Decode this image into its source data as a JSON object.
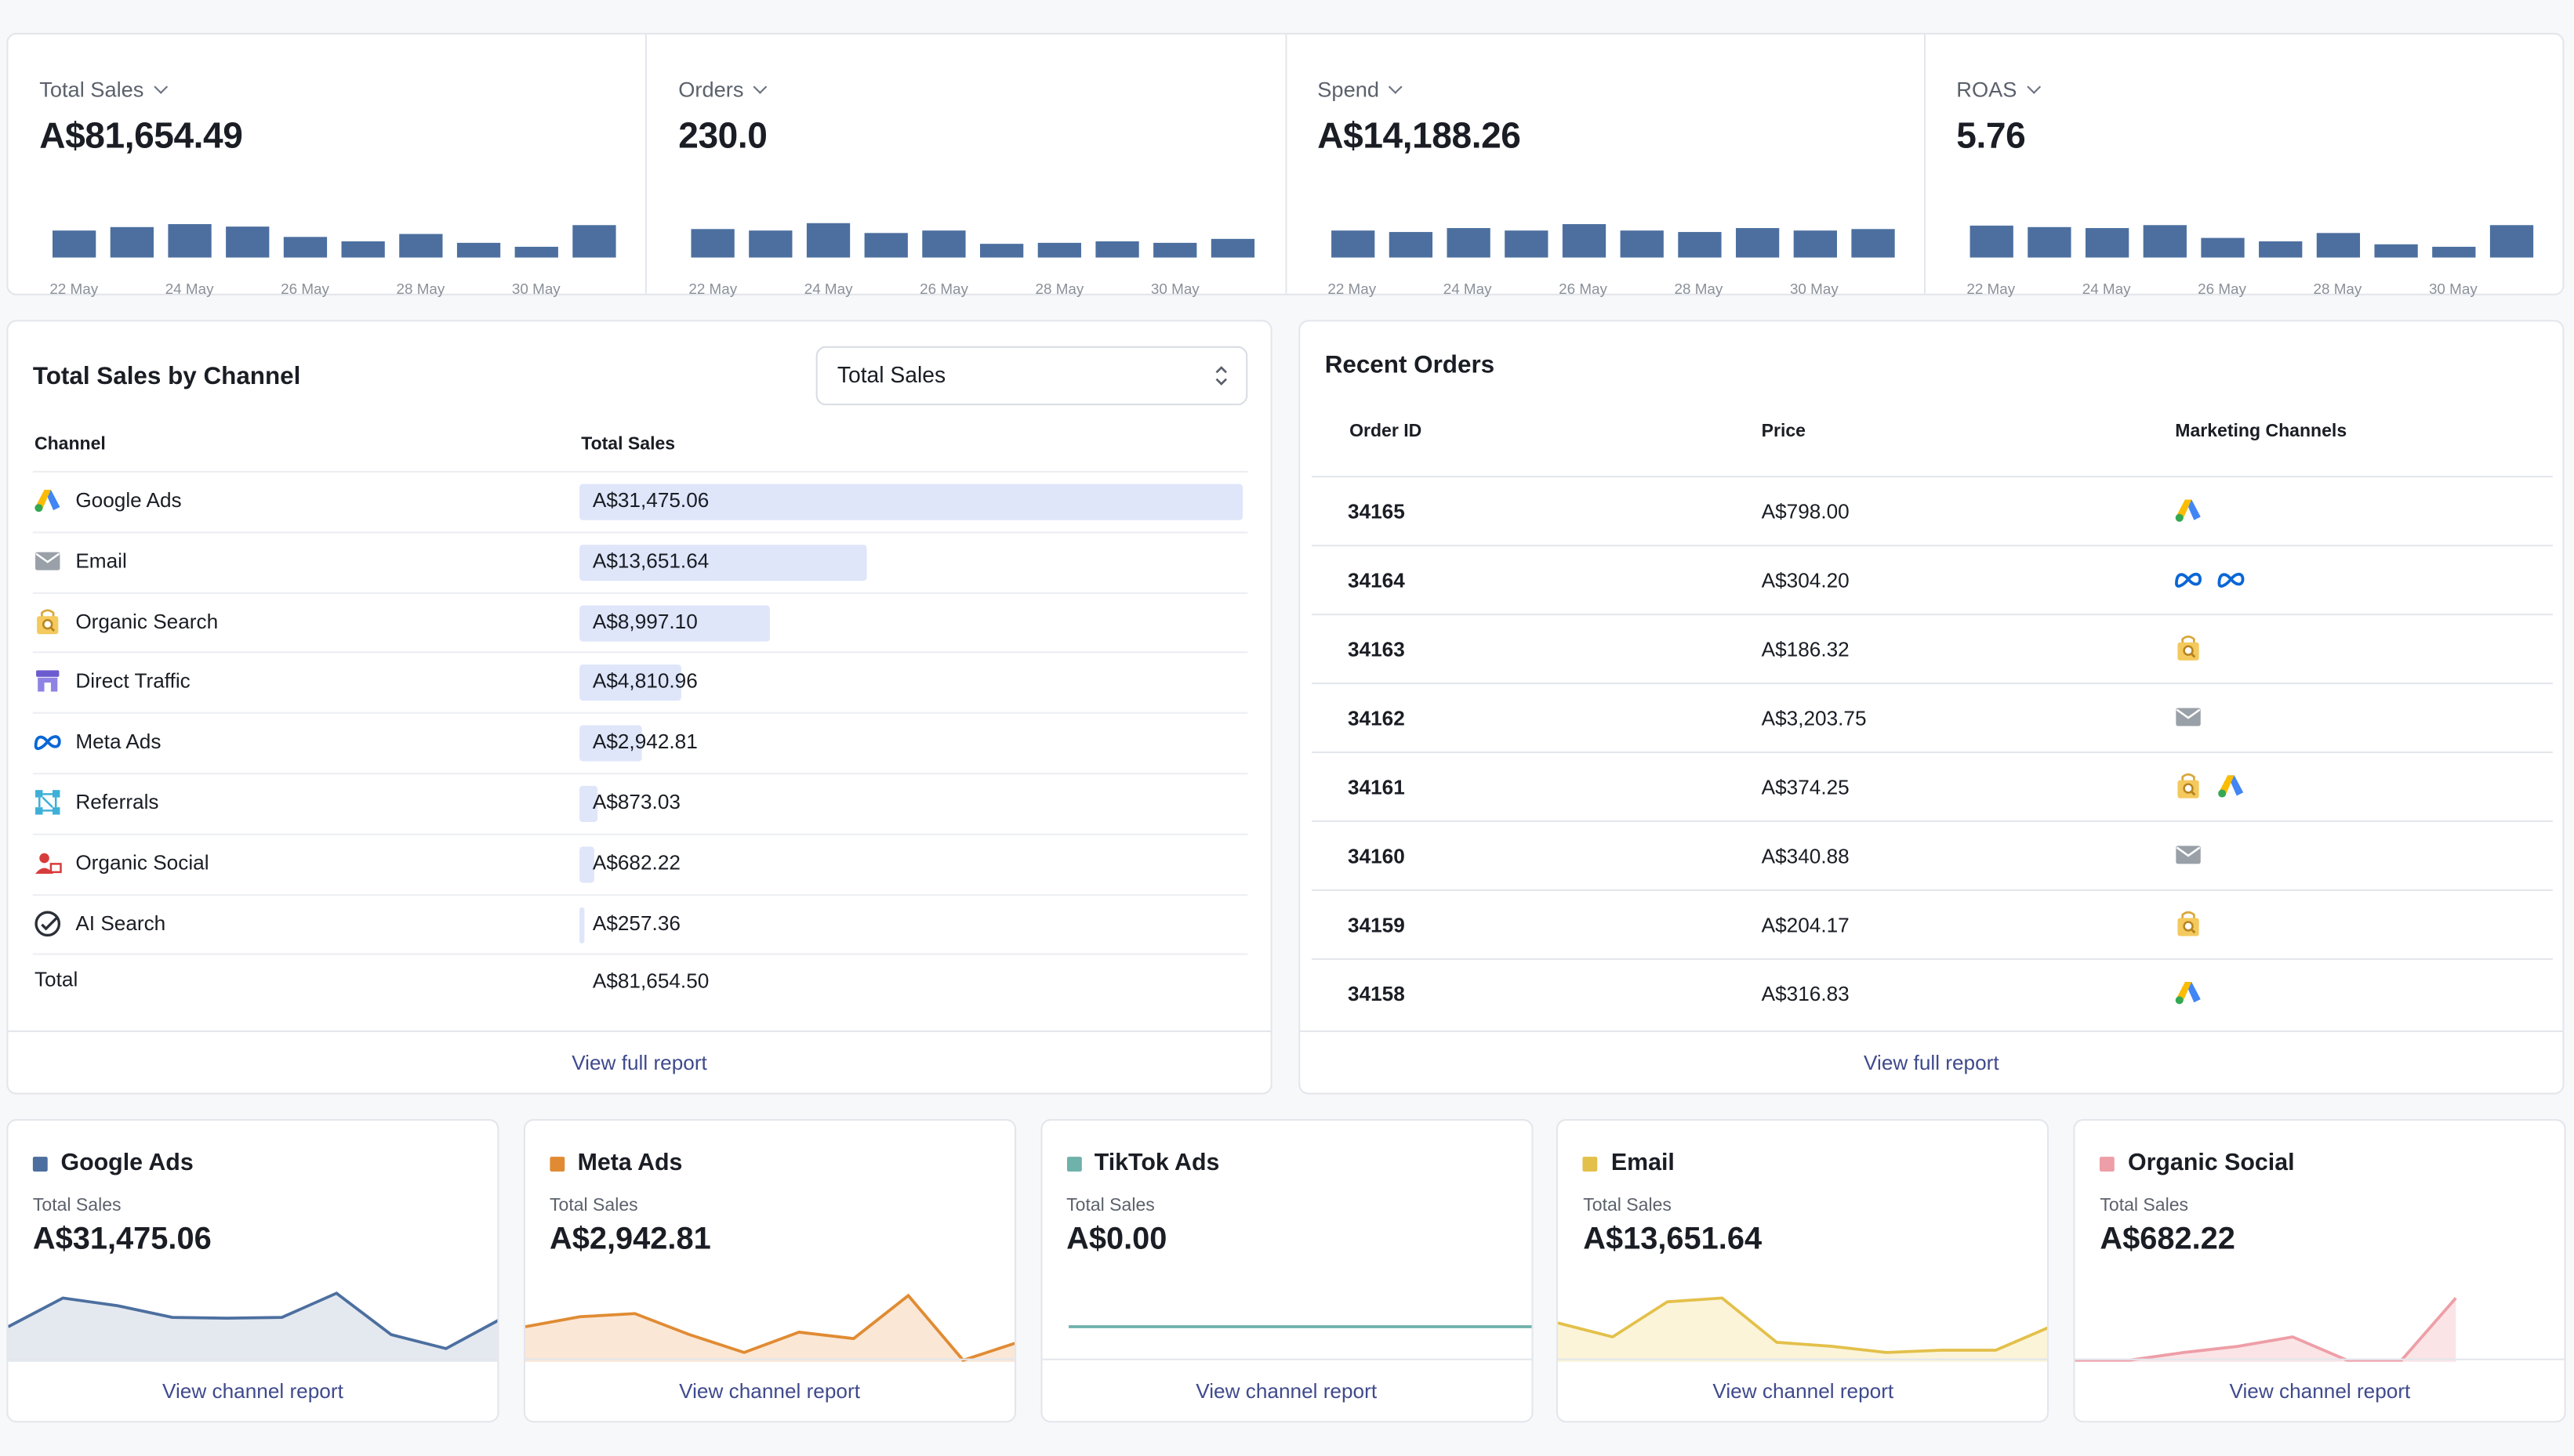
{
  "kpis": [
    {
      "label": "Total Sales",
      "value": "A$81,654.49",
      "bars": [
        0.55,
        0.62,
        0.68,
        0.63,
        0.42,
        0.33,
        0.48,
        0.3,
        0.22,
        0.66
      ],
      "ticks": [
        "22 May",
        "24 May",
        "26 May",
        "28 May",
        "30 May"
      ]
    },
    {
      "label": "Orders",
      "value": "230.0",
      "bars": [
        0.58,
        0.55,
        0.7,
        0.5,
        0.55,
        0.28,
        0.3,
        0.33,
        0.3,
        0.38
      ],
      "ticks": [
        "22 May",
        "24 May",
        "26 May",
        "28 May",
        "30 May"
      ]
    },
    {
      "label": "Spend",
      "value": "A$14,188.26",
      "bars": [
        0.55,
        0.52,
        0.6,
        0.55,
        0.68,
        0.55,
        0.52,
        0.6,
        0.55,
        0.58
      ],
      "ticks": [
        "22 May",
        "24 May",
        "26 May",
        "28 May",
        "30 May"
      ]
    },
    {
      "label": "ROAS",
      "value": "5.76",
      "bars": [
        0.65,
        0.62,
        0.6,
        0.66,
        0.4,
        0.33,
        0.5,
        0.27,
        0.22,
        0.66
      ],
      "ticks": [
        "22 May",
        "24 May",
        "26 May",
        "28 May",
        "30 May"
      ]
    }
  ],
  "colors": {
    "bar": "#4c6f9f",
    "link": "#3f4a8c",
    "google": "#4c6f9f",
    "meta": "#e08b33",
    "tiktok": "#6fb1ab",
    "email": "#e3c04a",
    "organic_social": "#ee9ea7"
  },
  "channel_panel": {
    "title": "Total Sales by Channel",
    "select_value": "Total Sales",
    "col_channel": "Channel",
    "col_sales": "Total Sales",
    "rows": [
      {
        "name": "Google Ads",
        "icon": "google-ads-icon",
        "value": "A$31,475.06",
        "share": 1.0
      },
      {
        "name": "Email",
        "icon": "email-icon",
        "value": "A$13,651.64",
        "share": 0.434
      },
      {
        "name": "Organic Search",
        "icon": "organic-search-icon",
        "value": "A$8,997.10",
        "share": 0.286
      },
      {
        "name": "Direct Traffic",
        "icon": "store-icon",
        "value": "A$4,810.96",
        "share": 0.153
      },
      {
        "name": "Meta Ads",
        "icon": "meta-icon",
        "value": "A$2,942.81",
        "share": 0.093
      },
      {
        "name": "Referrals",
        "icon": "referrals-icon",
        "value": "A$873.03",
        "share": 0.028
      },
      {
        "name": "Organic Social",
        "icon": "organic-social-icon",
        "value": "A$682.22",
        "share": 0.022
      },
      {
        "name": "AI Search",
        "icon": "ai-search-icon",
        "value": "A$257.36",
        "share": 0.008
      }
    ],
    "total_label": "Total",
    "total_value": "A$81,654.50",
    "link": "View full report"
  },
  "orders_panel": {
    "title": "Recent Orders",
    "col_id": "Order ID",
    "col_price": "Price",
    "col_channels": "Marketing Channels",
    "rows": [
      {
        "id": "34165",
        "price": "A$798.00",
        "channels": [
          "google-ads-icon"
        ]
      },
      {
        "id": "34164",
        "price": "A$304.20",
        "channels": [
          "meta-icon",
          "meta-icon"
        ]
      },
      {
        "id": "34163",
        "price": "A$186.32",
        "channels": [
          "organic-search-icon"
        ]
      },
      {
        "id": "34162",
        "price": "A$3,203.75",
        "channels": [
          "email-icon"
        ]
      },
      {
        "id": "34161",
        "price": "A$374.25",
        "channels": [
          "organic-search-icon",
          "google-ads-icon"
        ]
      },
      {
        "id": "34160",
        "price": "A$340.88",
        "channels": [
          "email-icon"
        ]
      },
      {
        "id": "34159",
        "price": "A$204.17",
        "channels": [
          "organic-search-icon"
        ]
      },
      {
        "id": "34158",
        "price": "A$316.83",
        "channels": [
          "google-ads-icon"
        ]
      }
    ],
    "link": "View full report"
  },
  "cards": [
    {
      "title": "Google Ads",
      "sub": "Total Sales",
      "value": "A$31,475.06",
      "color": "#4c6f9f",
      "fill": "#e4e9f0",
      "series": [
        0.45,
        0.82,
        0.72,
        0.57,
        0.56,
        0.57,
        0.88,
        0.35,
        0.17,
        0.55
      ]
    },
    {
      "title": "Meta Ads",
      "sub": "Total Sales",
      "value": "A$2,942.81",
      "color": "#e08b33",
      "fill": "#fbe7d6",
      "series": [
        0.45,
        0.58,
        0.62,
        0.35,
        0.12,
        0.38,
        0.3,
        0.85,
        0.02,
        0.25
      ]
    },
    {
      "title": "TikTok Ads",
      "sub": "Total Sales",
      "value": "A$0.00",
      "color": "#6fb1ab",
      "fill": "#ffffff",
      "series": [
        0.45,
        0.45,
        0.45,
        0.45,
        0.45,
        0.45,
        0.45,
        0.45,
        0.45
      ]
    },
    {
      "title": "Email",
      "sub": "Total Sales",
      "value": "A$13,651.64",
      "color": "#e3c04a",
      "fill": "#fbf4d9",
      "series": [
        0.5,
        0.32,
        0.77,
        0.82,
        0.25,
        0.2,
        0.12,
        0.15,
        0.15,
        0.45
      ]
    },
    {
      "title": "Organic Social",
      "sub": "Total Sales",
      "value": "A$682.22",
      "color": "#ee9ea7",
      "fill": "#fbe4e6",
      "series": [
        0.02,
        0.02,
        0.12,
        0.2,
        0.32,
        0.02,
        0.02,
        0.82
      ]
    }
  ],
  "card_link": "View channel report"
}
